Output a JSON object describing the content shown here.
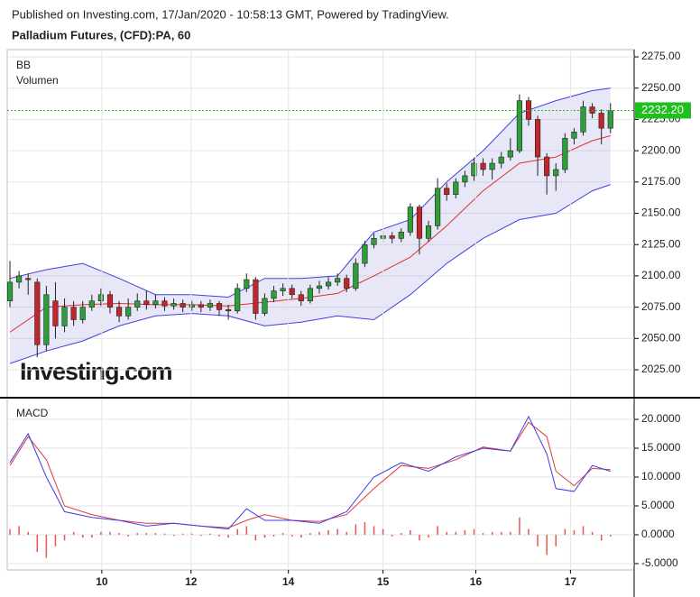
{
  "chart_data": [
    {
      "type": "candlestick",
      "subtitle": "Published on Investing.com, 17/Jan/2020 - 10:58:13 GMT, Powered by TradingView.",
      "title": "Palladium Futures, (CFD):PA, 60",
      "indicators": [
        "BB",
        "Volumen"
      ],
      "watermark": "Investing.com",
      "up_color": "#2e9e3a",
      "down_color": "#c0262c",
      "x": [
        0,
        1,
        2,
        3,
        4,
        5,
        6,
        7,
        8,
        9,
        10,
        11,
        12,
        13,
        14,
        15,
        16,
        17,
        18,
        19,
        20,
        21,
        22,
        23,
        24,
        25,
        26,
        27,
        28,
        29,
        30,
        31,
        32,
        33,
        34,
        35,
        36,
        37,
        38,
        39,
        40,
        41,
        42,
        43,
        44,
        45,
        46,
        47,
        48,
        49,
        50,
        51,
        52,
        53,
        54,
        55,
        56,
        57,
        58,
        59,
        60,
        61,
        62,
        63,
        64,
        65,
        66
      ],
      "open": [
        2080,
        2095,
        2098,
        2095,
        2045,
        2080,
        2060,
        2075,
        2065,
        2075,
        2080,
        2085,
        2075,
        2068,
        2075,
        2080,
        2077,
        2080,
        2076,
        2078,
        2075,
        2077,
        2075,
        2078,
        2073,
        2072,
        2090,
        2097,
        2070,
        2082,
        2088,
        2090,
        2085,
        2080,
        2090,
        2092,
        2095,
        2098,
        2090,
        2110,
        2125,
        2130,
        2132,
        2130,
        2135,
        2155,
        2130,
        2140,
        2170,
        2165,
        2175,
        2180,
        2190,
        2185,
        2190,
        2195,
        2200,
        2240,
        2225,
        2195,
        2180,
        2185,
        2210,
        2215,
        2235,
        2230,
        2218
      ],
      "high": [
        2112,
        2104,
        2102,
        2098,
        2092,
        2095,
        2082,
        2080,
        2080,
        2085,
        2090,
        2088,
        2080,
        2082,
        2086,
        2088,
        2085,
        2083,
        2082,
        2081,
        2080,
        2080,
        2081,
        2080,
        2077,
        2094,
        2102,
        2099,
        2086,
        2092,
        2094,
        2093,
        2088,
        2093,
        2096,
        2099,
        2102,
        2101,
        2114,
        2128,
        2134,
        2136,
        2135,
        2138,
        2158,
        2157,
        2144,
        2178,
        2174,
        2178,
        2184,
        2194,
        2194,
        2194,
        2199,
        2210,
        2245,
        2243,
        2228,
        2198,
        2190,
        2214,
        2218,
        2240,
        2238,
        2233,
        2238
      ],
      "low": [
        2075,
        2090,
        2085,
        2035,
        2040,
        2050,
        2055,
        2060,
        2062,
        2072,
        2076,
        2070,
        2063,
        2065,
        2072,
        2073,
        2074,
        2072,
        2073,
        2071,
        2072,
        2071,
        2072,
        2068,
        2065,
        2070,
        2087,
        2065,
        2068,
        2079,
        2084,
        2082,
        2076,
        2078,
        2086,
        2089,
        2092,
        2087,
        2088,
        2107,
        2122,
        2127,
        2126,
        2127,
        2132,
        2117,
        2127,
        2137,
        2160,
        2162,
        2171,
        2176,
        2180,
        2177,
        2186,
        2192,
        2198,
        2220,
        2180,
        2165,
        2168,
        2182,
        2205,
        2212,
        2226,
        2205,
        2214
      ],
      "close": [
        2095,
        2100,
        2097,
        2045,
        2085,
        2060,
        2075,
        2065,
        2075,
        2080,
        2085,
        2075,
        2068,
        2075,
        2080,
        2077,
        2080,
        2076,
        2078,
        2075,
        2077,
        2075,
        2078,
        2073,
        2072,
        2090,
        2097,
        2070,
        2082,
        2088,
        2090,
        2085,
        2080,
        2090,
        2092,
        2095,
        2098,
        2090,
        2110,
        2125,
        2130,
        2132,
        2130,
        2135,
        2155,
        2130,
        2140,
        2170,
        2165,
        2175,
        2180,
        2190,
        2185,
        2190,
        2195,
        2200,
        2240,
        2225,
        2195,
        2180,
        2185,
        2210,
        2215,
        2235,
        2230,
        2218,
        2232
      ],
      "bb": {
        "x": [
          0,
          4,
          8,
          12,
          16,
          20,
          24,
          28,
          32,
          36,
          40,
          44,
          48,
          52,
          56,
          60,
          64,
          66
        ],
        "upper": [
          2098,
          2105,
          2110,
          2098,
          2085,
          2085,
          2083,
          2098,
          2098,
          2100,
          2135,
          2145,
          2175,
          2200,
          2230,
          2240,
          2248,
          2250
        ],
        "basis": [
          2055,
          2075,
          2077,
          2078,
          2077,
          2077,
          2076,
          2079,
          2082,
          2086,
          2100,
          2115,
          2140,
          2168,
          2190,
          2195,
          2208,
          2212
        ],
        "lower": [
          2030,
          2040,
          2048,
          2060,
          2068,
          2070,
          2068,
          2060,
          2063,
          2068,
          2065,
          2085,
          2110,
          2130,
          2145,
          2150,
          2168,
          2173
        ],
        "band_color": "#4040e0",
        "basis_color": "#e03030",
        "fill": "rgba(120,120,210,0.18)"
      },
      "last_price": {
        "value": 2232.2,
        "label": "2232.20"
      },
      "last_color": "#1fbf1f",
      "xlim": [
        -0.3,
        68.6
      ],
      "ylim": [
        2003.4,
        2280.8
      ],
      "yticks": [
        {
          "value": 2025,
          "label": "2025.00"
        },
        {
          "value": 2050,
          "label": "2050.00"
        },
        {
          "value": 2075,
          "label": "2075.00"
        },
        {
          "value": 2100,
          "label": "2100.00"
        },
        {
          "value": 2125,
          "label": "2125.00"
        },
        {
          "value": 2150,
          "label": "2150.00"
        },
        {
          "value": 2175,
          "label": "2175.00"
        },
        {
          "value": 2200,
          "label": "2200.00"
        },
        {
          "value": 2225,
          "label": "2225.00"
        },
        {
          "value": 2250,
          "label": "2250.00"
        },
        {
          "value": 2275,
          "label": "2275.00"
        }
      ],
      "grid": true
    },
    {
      "type": "macd",
      "indicators": [
        "MACD"
      ],
      "macd": {
        "x": [
          0,
          2,
          4,
          6,
          9,
          12,
          15,
          18,
          21,
          24,
          26,
          28,
          31,
          34,
          37,
          40,
          43,
          46,
          49,
          52,
          55,
          57,
          59,
          60,
          62,
          64,
          66
        ],
        "color": "#3a3ae8",
        "values": [
          12.5,
          17.5,
          10,
          4,
          3,
          2.5,
          1.5,
          2,
          1.5,
          1,
          4.5,
          2.5,
          2.5,
          2,
          4,
          10,
          12.5,
          11,
          13.5,
          15,
          14.5,
          20.5,
          14,
          8,
          7.5,
          12,
          11
        ]
      },
      "signal": {
        "x": [
          0,
          2,
          4,
          6,
          9,
          12,
          15,
          18,
          21,
          24,
          26,
          28,
          31,
          34,
          37,
          40,
          43,
          46,
          49,
          52,
          55,
          57,
          59,
          60,
          62,
          64,
          66
        ],
        "color": "#e03a3a",
        "values": [
          12,
          17,
          13,
          5,
          3.5,
          2.5,
          2,
          2,
          1.5,
          1.2,
          2.5,
          3.5,
          2.5,
          2.3,
          3.5,
          8,
          12,
          11.5,
          13,
          15.2,
          14.5,
          19.5,
          17,
          11,
          8.5,
          11.5,
          11.3
        ]
      },
      "histogram": {
        "color": "#ef5350",
        "x": [
          0,
          1,
          2,
          3,
          4,
          5,
          6,
          7,
          8,
          9,
          10,
          11,
          12,
          13,
          14,
          15,
          16,
          17,
          18,
          19,
          20,
          21,
          22,
          23,
          24,
          25,
          26,
          27,
          28,
          29,
          30,
          31,
          32,
          33,
          34,
          35,
          36,
          37,
          38,
          39,
          40,
          41,
          42,
          43,
          44,
          45,
          46,
          47,
          48,
          49,
          50,
          51,
          52,
          53,
          54,
          55,
          56,
          57,
          58,
          59,
          60,
          61,
          62,
          63,
          64,
          65,
          66
        ],
        "values": [
          1,
          1.5,
          0.5,
          -3,
          -4,
          -2,
          -1,
          0.5,
          -0.5,
          -0.5,
          0.5,
          0.5,
          0.3,
          -0.3,
          0.3,
          0.3,
          0.3,
          0.2,
          -0.2,
          0.2,
          0.2,
          -0.2,
          0.2,
          -0.3,
          -0.5,
          1,
          1.5,
          -1,
          -0.5,
          -0.3,
          0.3,
          -0.3,
          -0.5,
          0.3,
          0.5,
          0.8,
          1,
          0.5,
          1.8,
          2.2,
          1.5,
          1,
          -0.3,
          0.3,
          0.8,
          -1,
          -0.5,
          1.5,
          0.5,
          0.5,
          0.8,
          1,
          0.3,
          0.5,
          0.5,
          0.5,
          3,
          1,
          -2,
          -3.5,
          -2,
          1,
          0.8,
          1.5,
          0.5,
          -1,
          -0.3
        ]
      },
      "xlim": [
        -0.3,
        68.6
      ],
      "ylim": [
        -6.1,
        23.6
      ],
      "yticks": [
        {
          "value": -5,
          "label": "-5.0000"
        },
        {
          "value": 0,
          "label": "0.0000"
        },
        {
          "value": 5,
          "label": "5.0000"
        },
        {
          "value": 10,
          "label": "10.0000"
        },
        {
          "value": 15,
          "label": "15.0000"
        },
        {
          "value": 20,
          "label": "20.0000"
        }
      ],
      "xticks": [
        {
          "value": 10.1,
          "label": "10"
        },
        {
          "value": 19.9,
          "label": "12"
        },
        {
          "value": 30.6,
          "label": "14"
        },
        {
          "value": 41,
          "label": "15"
        },
        {
          "value": 51.2,
          "label": "16"
        },
        {
          "value": 61.6,
          "label": "17"
        }
      ],
      "grid": true
    }
  ]
}
